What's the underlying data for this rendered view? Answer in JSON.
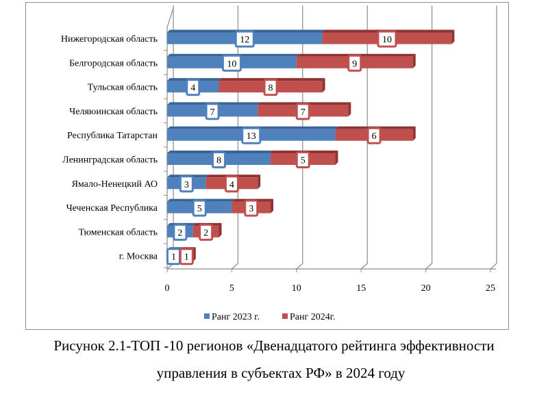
{
  "chart_data": {
    "type": "bar",
    "stacked": true,
    "orientation": "horizontal",
    "categories": [
      "Нижегородская область",
      "Белгородская область",
      "Тульская область",
      "Челяюинская область",
      "Республика Татарстан",
      "Ленинградская область",
      "Ямало-Ненецкий АО",
      "Чеченская Республика",
      "Тюменская область",
      "г. Москва"
    ],
    "series": [
      {
        "name": "Ранг 2023 г.",
        "color": "#4f81bd",
        "values": [
          12,
          10,
          4,
          7,
          13,
          8,
          3,
          5,
          2,
          1
        ]
      },
      {
        "name": "Ранг 2024г.",
        "color": "#c0504d",
        "values": [
          10,
          9,
          8,
          7,
          6,
          5,
          4,
          3,
          2,
          1
        ]
      }
    ],
    "xlim": [
      0,
      25
    ],
    "xticks": [
      "0",
      "5",
      "10",
      "15",
      "20",
      "25"
    ],
    "grid": true,
    "legend": "bottom"
  },
  "caption": {
    "line1": "Рисунок 2.1-ТОП -10 регионов «Двенадцатого рейтинга эффективности",
    "line2": "управления в субъектах РФ» в 2024 году"
  }
}
